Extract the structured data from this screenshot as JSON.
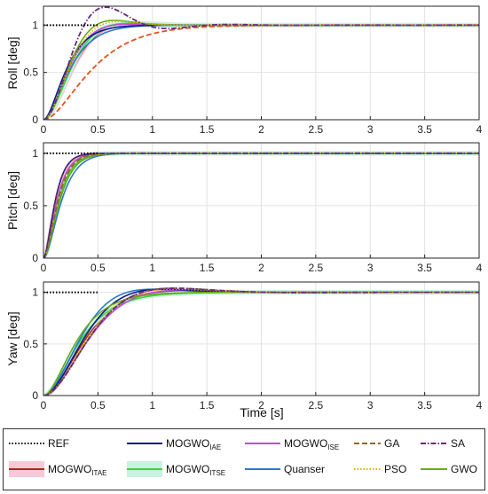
{
  "chart_data": {
    "type": "line",
    "x_unit_label": "Time [s]",
    "xlim": [
      0,
      4
    ],
    "xticks": [
      "0",
      "0.5",
      "1",
      "1.5",
      "2",
      "2.5",
      "3",
      "3.5",
      "4"
    ],
    "grid": true,
    "legend_placement": "bottom",
    "panels": [
      {
        "ylabel": "Roll [deg]",
        "ylim": [
          0,
          1.2
        ],
        "yticks": [
          "0",
          "0.5",
          "1"
        ],
        "responses": {
          "MOGWO_IAE": {
            "tr": 0.26,
            "ov": 0.0,
            "tp": 0.9
          },
          "MOGWO_ISE": {
            "tr": 0.22,
            "ov": 0.01,
            "tp": 0.8
          },
          "GA": {
            "tr": 0.55,
            "ov": 0.0,
            "tp": 1.0
          },
          "SA": {
            "tr": 0.14,
            "ov": 0.19,
            "tp": 0.57
          },
          "MOGWO_ITAE": {
            "tr": 0.24,
            "ov": 0.02,
            "tp": 0.85
          },
          "MOGWO_ITSE": {
            "tr": 0.2,
            "ov": 0.02,
            "tp": 0.8
          },
          "Quanser": {
            "tr": 0.3,
            "ov": 0.0,
            "tp": 1.0
          },
          "PSO": {
            "tr": 0.17,
            "ov": 0.04,
            "tp": 0.7
          },
          "GWO": {
            "tr": 0.16,
            "ov": 0.05,
            "tp": 0.65
          }
        }
      },
      {
        "ylabel": "Pitch [deg]",
        "ylim": [
          0,
          1.1
        ],
        "yticks": [
          "0",
          "0.5",
          "1"
        ],
        "responses": {
          "MOGWO_IAE": {
            "tr": 0.13,
            "ov": 0.0,
            "tp": 0.8
          },
          "MOGWO_ISE": {
            "tr": 0.15,
            "ov": 0.0,
            "tp": 0.8
          },
          "GA": {
            "tr": 0.16,
            "ov": 0.0,
            "tp": 0.8
          },
          "SA": {
            "tr": 0.13,
            "ov": 0.0,
            "tp": 0.8
          },
          "MOGWO_ITAE": {
            "tr": 0.15,
            "ov": 0.0,
            "tp": 0.8
          },
          "MOGWO_ITSE": {
            "tr": 0.17,
            "ov": 0.0,
            "tp": 0.8
          },
          "Quanser": {
            "tr": 0.2,
            "ov": 0.0,
            "tp": 0.8
          },
          "PSO": {
            "tr": 0.16,
            "ov": 0.0,
            "tp": 0.8
          },
          "GWO": {
            "tr": 0.18,
            "ov": 0.0,
            "tp": 0.8
          }
        }
      },
      {
        "ylabel": "Yaw [deg]",
        "ylim": [
          0,
          1.1
        ],
        "yticks": [
          "0",
          "0.5",
          "1"
        ],
        "responses": {
          "MOGWO_IAE": {
            "tr": 0.28,
            "ov": 0.03,
            "tp": 1.1
          },
          "MOGWO_ISE": {
            "tr": 0.33,
            "ov": 0.02,
            "tp": 1.3
          },
          "GA": {
            "tr": 0.3,
            "ov": 0.04,
            "tp": 1.2
          },
          "SA": {
            "tr": 0.3,
            "ov": 0.04,
            "tp": 1.2
          },
          "MOGWO_ITAE": {
            "tr": 0.35,
            "ov": 0.01,
            "tp": 1.3
          },
          "MOGWO_ITSE": {
            "tr": 0.42,
            "ov": 0.0,
            "tp": 1.4
          },
          "Quanser": {
            "tr": 0.27,
            "ov": 0.03,
            "tp": 1.0
          },
          "PSO": {
            "tr": 0.31,
            "ov": 0.03,
            "tp": 1.2
          },
          "GWO": {
            "tr": 0.38,
            "ov": 0.0,
            "tp": 1.4
          }
        }
      }
    ],
    "reference_value": 1,
    "reference_end_time": 0.5,
    "series": [
      {
        "key": "REF",
        "name": "REF",
        "sub": "",
        "color": "#000000",
        "dash": "1.5,2",
        "halo": ""
      },
      {
        "key": "MOGWO_IAE",
        "name": "MOGWO",
        "sub": "IAE",
        "color": "#0a1a8c",
        "dash": "",
        "halo": ""
      },
      {
        "key": "MOGWO_ISE",
        "name": "MOGWO",
        "sub": "ISE",
        "color": "#c24ad9",
        "dash": "",
        "halo": ""
      },
      {
        "key": "GA",
        "name": "GA",
        "sub": "",
        "color": "#8a6a2a",
        "dash": "6,3",
        "halo": ""
      },
      {
        "key": "SA",
        "name": "SA",
        "sub": "",
        "color": "#6a2a7a",
        "dash": "6,2,1.5,2",
        "halo": ""
      },
      {
        "key": "MOGWO_ITAE",
        "name": "MOGWO",
        "sub": "ITAE",
        "color": "#a82a18",
        "dash": "",
        "halo": "#f6c9d8"
      },
      {
        "key": "MOGWO_ITSE",
        "name": "MOGWO",
        "sub": "ITSE",
        "color": "#3fd23f",
        "dash": "",
        "halo": "#c9f2e0"
      },
      {
        "key": "Quanser",
        "name": "Quanser",
        "sub": "",
        "color": "#2a7ac9",
        "dash": "",
        "halo": ""
      },
      {
        "key": "PSO",
        "name": "PSO",
        "sub": "",
        "color": "#d9b300",
        "dash": "1.5,2",
        "halo": ""
      },
      {
        "key": "GWO",
        "name": "GWO",
        "sub": "",
        "color": "#6aaa1a",
        "dash": "",
        "halo": ""
      }
    ],
    "roll_GA_color": "#e2531e"
  }
}
